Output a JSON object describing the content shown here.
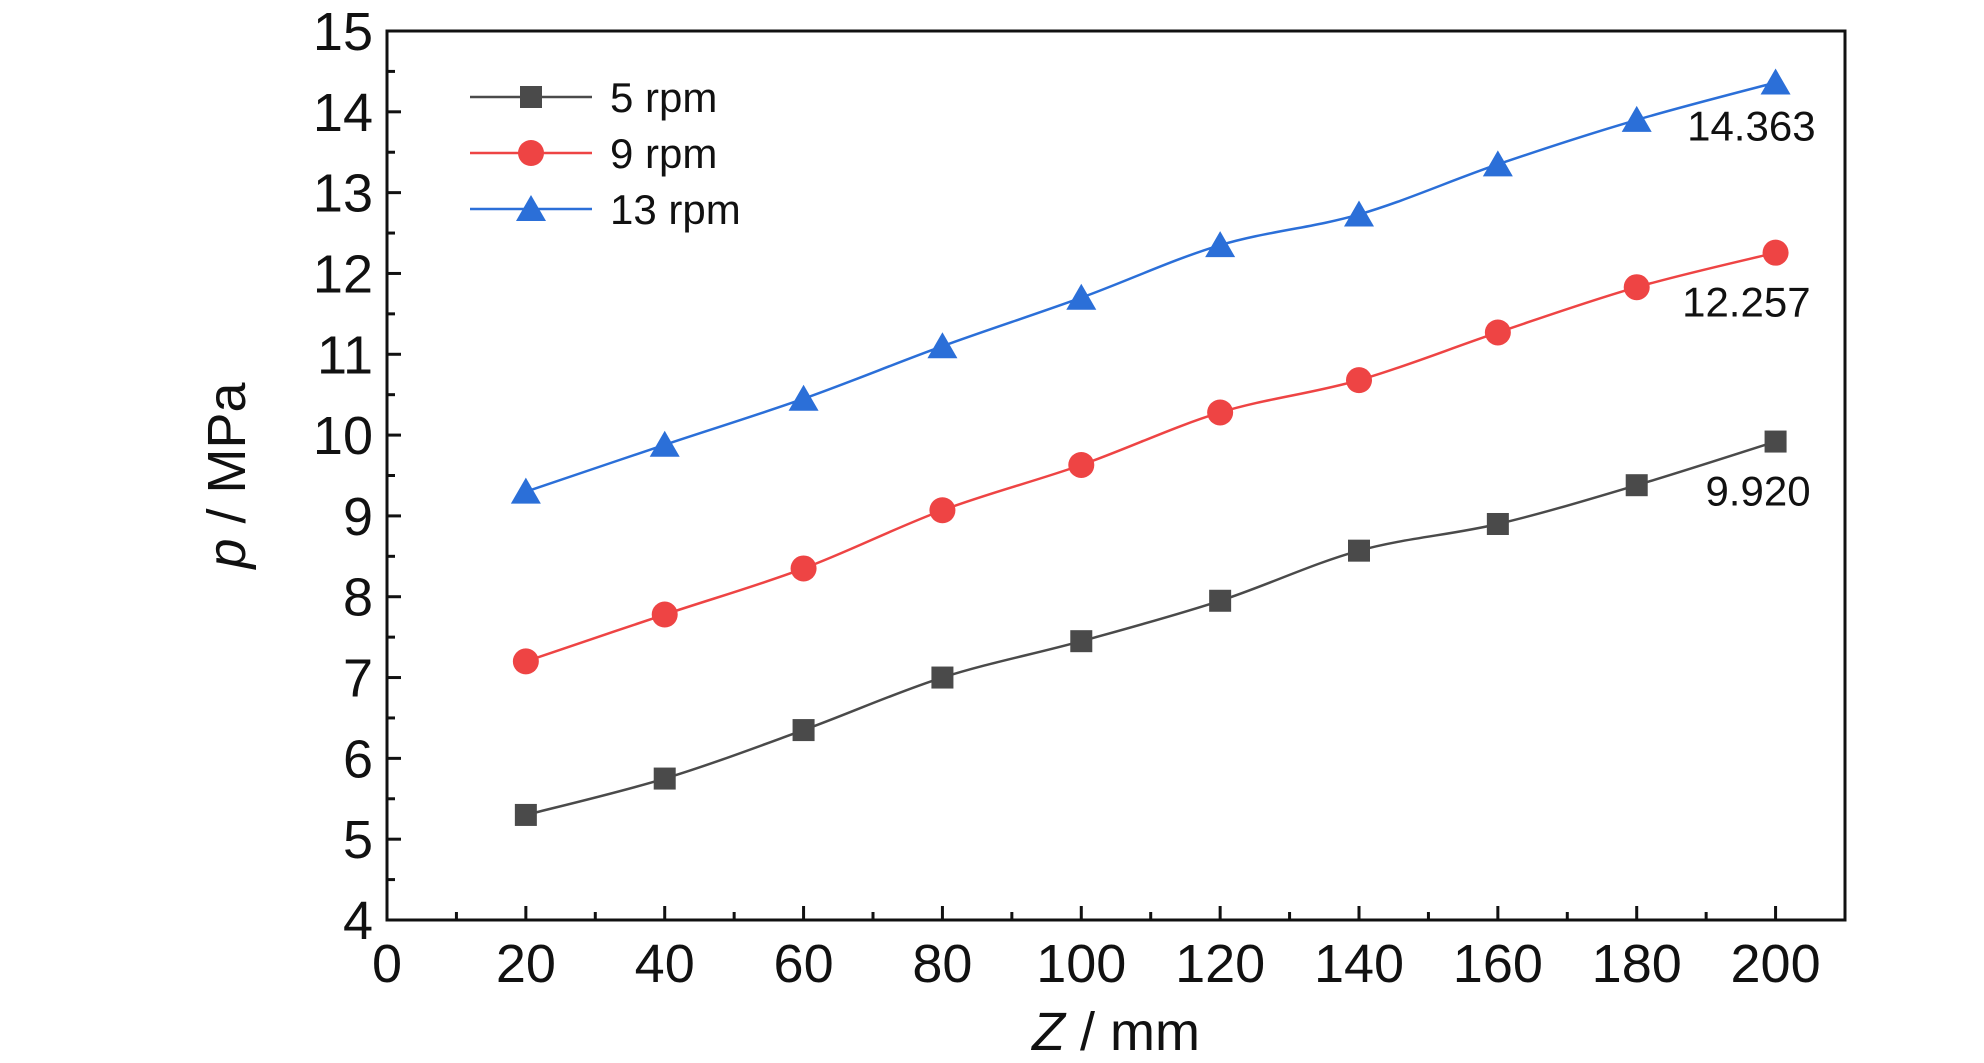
{
  "chart_data": {
    "type": "line",
    "xlabel_var": "Z",
    "xlabel_unit": " / mm",
    "ylabel_var": "p",
    "ylabel_unit": " / MPa",
    "xlim": [
      0,
      210
    ],
    "ylim": [
      4,
      15
    ],
    "x_ticks": [
      0,
      20,
      40,
      60,
      80,
      100,
      120,
      140,
      160,
      180,
      200
    ],
    "y_ticks": [
      4,
      5,
      6,
      7,
      8,
      9,
      10,
      11,
      12,
      13,
      14,
      15
    ],
    "grid": false,
    "legend_position": "top-left",
    "x": [
      20,
      40,
      60,
      80,
      100,
      120,
      140,
      160,
      180,
      200
    ],
    "series": [
      {
        "name": "5 rpm",
        "color": "#4a4a4a",
        "marker": "square",
        "values": [
          5.3,
          5.75,
          6.35,
          7.0,
          7.45,
          7.95,
          8.57,
          8.9,
          9.38,
          9.92
        ]
      },
      {
        "name": "9 rpm",
        "color": "#ee4444",
        "marker": "circle",
        "values": [
          7.2,
          7.78,
          8.35,
          9.07,
          9.63,
          10.28,
          10.68,
          11.27,
          11.83,
          12.257
        ]
      },
      {
        "name": "13 rpm",
        "color": "#2b6fd8",
        "marker": "triangle",
        "values": [
          9.3,
          9.88,
          10.45,
          11.1,
          11.7,
          12.35,
          12.73,
          13.35,
          13.9,
          14.363
        ]
      }
    ],
    "annotations": [
      {
        "text": "14.363",
        "x": 200,
        "y": 14.363
      },
      {
        "text": "12.257",
        "x": 200,
        "y": 12.257
      },
      {
        "text": "9.920",
        "x": 200,
        "y": 9.92
      }
    ]
  }
}
